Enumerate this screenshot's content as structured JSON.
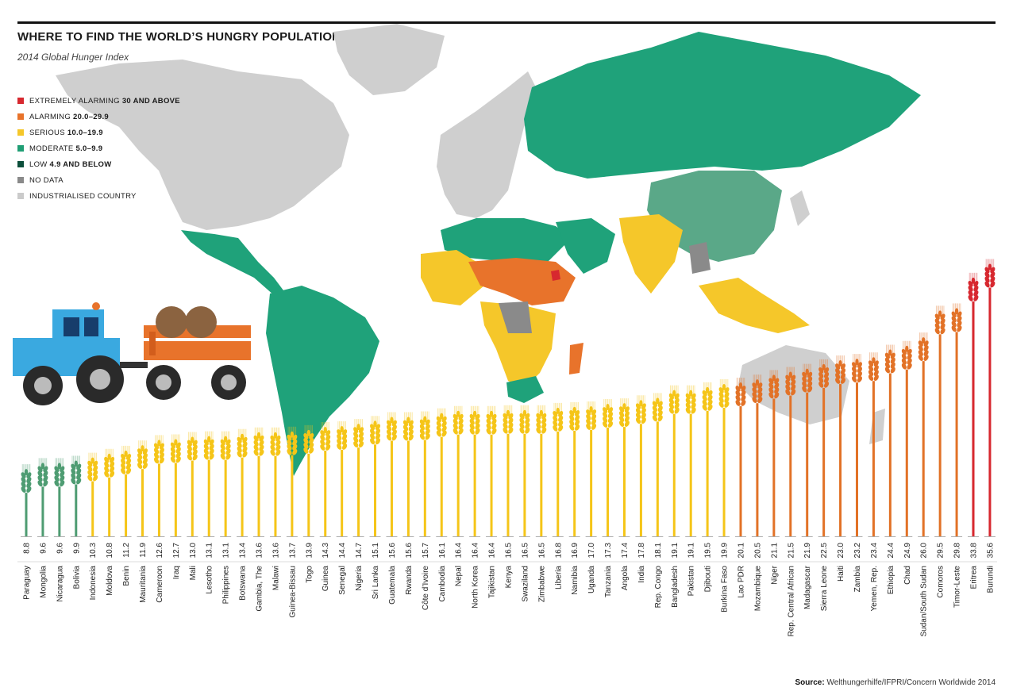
{
  "header": {
    "title": "WHERE TO FIND THE WORLD’S HUNGRY POPULATION",
    "subtitle": "2014 Global Hunger Index"
  },
  "legend": [
    {
      "label": "EXTREMELY ALARMING",
      "range": "30 AND ABOVE",
      "color": "#d7282f"
    },
    {
      "label": "ALARMING",
      "range": "20.0–29.9",
      "color": "#e8732b"
    },
    {
      "label": "SERIOUS",
      "range": "10.0–19.9",
      "color": "#f5c72a"
    },
    {
      "label": "MODERATE",
      "range": "5.0–9.9",
      "color": "#1f9e74"
    },
    {
      "label": "LOW",
      "range": "4.9 AND BELOW",
      "color": "#0c4f3b"
    },
    {
      "label": "NO DATA",
      "range": "",
      "color": "#8a8a8a"
    },
    {
      "label": "INDUSTRIALISED COUNTRY",
      "range": "",
      "color": "#cbcbcb"
    }
  ],
  "map_colors": {
    "industrialised": "#cfcfcf",
    "moderate": "#1fa27a",
    "china_moderate": "#5aa888",
    "serious": "#f5c72a",
    "alarming": "#e8732b",
    "extremely_alarming": "#d7282f",
    "no_data": "#8a8a8a"
  },
  "chart_data": {
    "type": "bar",
    "categories": [
      "Paraguay",
      "Mongolia",
      "Nicaragua",
      "Bolivia",
      "Indonesia",
      "Moldova",
      "Benin",
      "Mauritania",
      "Cameroon",
      "Iraq",
      "Mali",
      "Lesotho",
      "Philippines",
      "Botswana",
      "Gambia, The",
      "Malawi",
      "Guinea-Bissau",
      "Togo",
      "Guinea",
      "Senegal",
      "Nigeria",
      "Sri Lanka",
      "Guatemala",
      "Rwanda",
      "Côte d’Ivoire",
      "Cambodia",
      "Nepal",
      "North Korea",
      "Tajikistan",
      "Kenya",
      "Swaziland",
      "Zimbabwe",
      "Liberia",
      "Namibia",
      "Uganda",
      "Tanzania",
      "Angola",
      "India",
      "Rep. Congo",
      "Bangladesh",
      "Pakistan",
      "Djibouti",
      "Burkina Faso",
      "Lao PDR",
      "Mozambique",
      "Niger",
      "Rep. Central African",
      "Madagascar",
      "Sierra Leone",
      "Haiti",
      "Zambia",
      "Yemen, Rep.",
      "Ethiopia",
      "Chad",
      "Sudan/South Sudan",
      "Comoros",
      "Timor-Leste",
      "Eritrea",
      "Burundi"
    ],
    "values": [
      8.8,
      9.6,
      9.6,
      9.9,
      10.3,
      10.8,
      11.2,
      11.9,
      12.6,
      12.7,
      13.0,
      13.1,
      13.1,
      13.4,
      13.6,
      13.6,
      13.7,
      13.9,
      14.3,
      14.4,
      14.7,
      15.1,
      15.6,
      15.6,
      15.7,
      16.1,
      16.4,
      16.4,
      16.4,
      16.5,
      16.5,
      16.5,
      16.8,
      16.9,
      17.0,
      17.3,
      17.4,
      17.8,
      18.1,
      19.1,
      19.1,
      19.5,
      19.9,
      20.1,
      20.5,
      21.1,
      21.5,
      21.9,
      22.5,
      23.0,
      23.2,
      23.4,
      24.4,
      24.9,
      26.0,
      29.5,
      29.8,
      33.8,
      35.6
    ],
    "labels": [
      "8.8",
      "9.6",
      "9.6",
      "9.9",
      "10.3",
      "10.8",
      "11.2",
      "11.9",
      "12.6",
      "12.7",
      "13.0",
      "13.1",
      "13.1",
      "13.4",
      "13.6",
      "13.6",
      "13.7",
      "13.9",
      "14.3",
      "14.4",
      "14.7",
      "15.1",
      "15.6",
      "15.6",
      "15.7",
      "16.1",
      "16.4",
      "16.4",
      "16.4",
      "16.5",
      "16.5",
      "16.5",
      "16.8",
      "16.9",
      "17.0",
      "17.3",
      "17.4",
      "17.8",
      "18.1",
      "19.1",
      "19.1",
      "19.5",
      "19.9",
      "20.1",
      "20.5",
      "21.1",
      "21.5",
      "21.9",
      "22.5",
      "23.0",
      "23.2",
      "23.4",
      "24.4",
      "24.9",
      "26.0",
      "29.5",
      "29.8",
      "33.8",
      "35.6"
    ],
    "category_colors": {
      "moderate": "#4e9c72",
      "serious": "#f5c518",
      "alarming": "#e27227",
      "extremely_alarming": "#d7282f"
    },
    "thresholds": [
      10,
      20,
      30
    ]
  },
  "source": {
    "label": "Source:",
    "text": "Welthungerhilfe/IFPRI/Concern Worldwide 2014"
  }
}
